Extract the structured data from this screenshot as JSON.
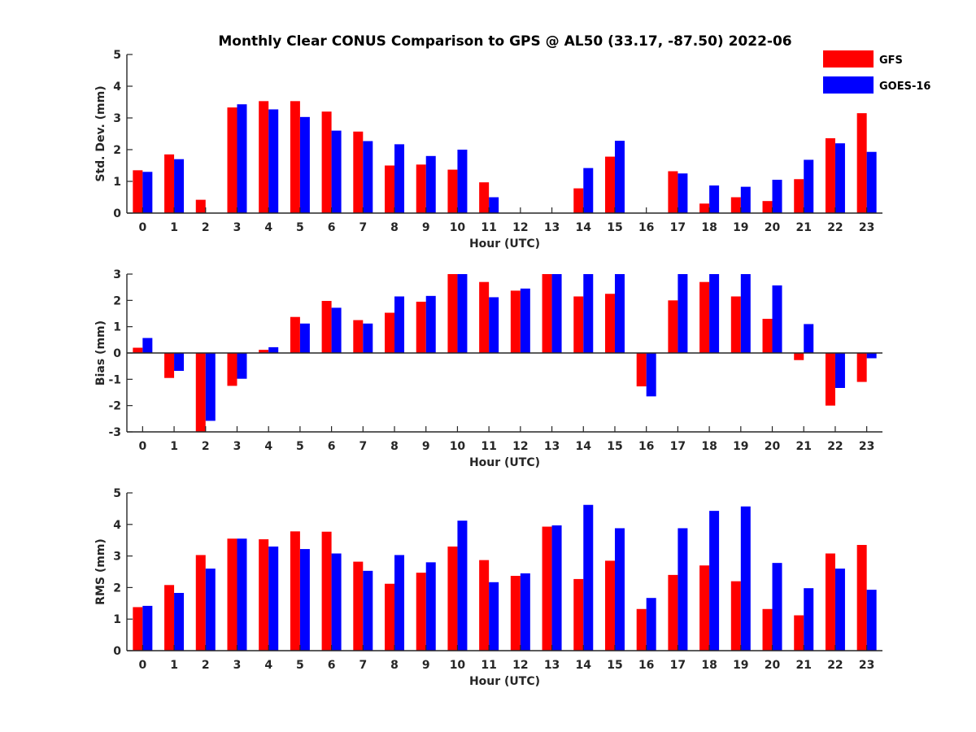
{
  "chart_data": {
    "type": "bar",
    "title": "Monthly Clear CONUS Comparison to GPS @ AL50 (33.17, -87.50) 2022-06",
    "legend": {
      "placement": "top-right",
      "entries": [
        "GFS",
        "GOES-16"
      ]
    },
    "colors": {
      "GFS": "#ff0000",
      "GOES-16": "#0000ff",
      "axis": "#262626"
    },
    "categories": [
      "0",
      "1",
      "2",
      "3",
      "4",
      "5",
      "6",
      "7",
      "8",
      "9",
      "10",
      "11",
      "12",
      "13",
      "14",
      "15",
      "16",
      "17",
      "18",
      "19",
      "20",
      "21",
      "22",
      "23"
    ],
    "panels": [
      {
        "ylabel": "Std. Dev. (mm)",
        "xlabel": "Hour (UTC)",
        "ylim": [
          0,
          5
        ],
        "yticks": [
          0,
          1,
          2,
          3,
          4,
          5
        ],
        "series": [
          {
            "name": "GFS",
            "values": [
              1.35,
              1.85,
              0.42,
              3.33,
              3.53,
              3.53,
              3.2,
              2.57,
              1.5,
              1.53,
              1.37,
              0.97,
              null,
              null,
              0.78,
              1.78,
              null,
              1.32,
              0.3,
              0.5,
              0.38,
              1.07,
              2.36,
              3.15
            ]
          },
          {
            "name": "GOES-16",
            "values": [
              1.3,
              1.7,
              null,
              3.43,
              3.27,
              3.03,
              2.6,
              2.27,
              2.17,
              1.8,
              2.0,
              0.5,
              null,
              null,
              1.42,
              2.28,
              null,
              1.25,
              0.87,
              0.83,
              1.05,
              1.68,
              2.2,
              1.93
            ]
          }
        ]
      },
      {
        "ylabel": "Bias (mm)",
        "xlabel": "Hour (UTC)",
        "ylim": [
          -3,
          3
        ],
        "yticks": [
          -3,
          -2,
          -1,
          0,
          1,
          2,
          3
        ],
        "series": [
          {
            "name": "GFS",
            "values": [
              0.2,
              -0.95,
              -3.0,
              -1.25,
              0.12,
              1.37,
              1.98,
              1.25,
              1.53,
              1.95,
              3.0,
              2.7,
              2.37,
              3.0,
              2.15,
              2.25,
              -1.27,
              2.0,
              2.7,
              2.15,
              1.3,
              -0.27,
              -2.0,
              -1.1
            ]
          },
          {
            "name": "GOES-16",
            "values": [
              0.57,
              -0.68,
              -2.58,
              -0.98,
              0.22,
              1.12,
              1.72,
              1.12,
              2.15,
              2.17,
              3.0,
              2.12,
              2.45,
              3.0,
              3.0,
              3.0,
              -1.65,
              3.0,
              3.0,
              3.0,
              2.57,
              1.1,
              -1.33,
              -0.2
            ]
          }
        ]
      },
      {
        "ylabel": "RMS (mm)",
        "xlabel": "Hour (UTC)",
        "ylim": [
          0,
          5
        ],
        "yticks": [
          0,
          1,
          2,
          3,
          4,
          5
        ],
        "series": [
          {
            "name": "GFS",
            "values": [
              1.38,
              2.08,
              3.03,
              3.55,
              3.53,
              3.78,
              3.77,
              2.82,
              2.12,
              2.47,
              3.3,
              2.87,
              2.37,
              3.93,
              2.27,
              2.85,
              1.32,
              2.4,
              2.7,
              2.2,
              1.32,
              1.12,
              3.08,
              3.35
            ]
          },
          {
            "name": "GOES-16",
            "values": [
              1.42,
              1.83,
              2.6,
              3.55,
              3.3,
              3.22,
              3.08,
              2.53,
              3.03,
              2.8,
              4.12,
              2.17,
              2.45,
              3.97,
              4.62,
              3.88,
              1.67,
              3.88,
              4.43,
              4.57,
              2.78,
              1.98,
              2.6,
              1.93
            ]
          }
        ]
      }
    ]
  }
}
